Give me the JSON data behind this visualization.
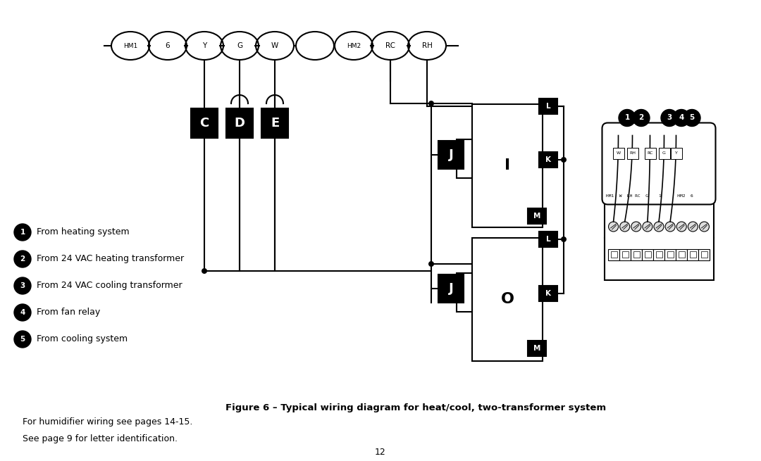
{
  "caption": "Figure 6 – Typical wiring diagram for heat/cool, two-transformer system",
  "footnote1": "For humidifier wiring see pages 14-15.",
  "footnote2": "See page 9 for letter identification.",
  "page_number": "12",
  "legend_items": [
    "From heating system",
    "From 24 VAC heating transformer",
    "From 24 VAC cooling transformer",
    "From fan relay",
    "From cooling system"
  ],
  "terminal_labels": [
    "HM1",
    "6",
    "Y",
    "G",
    "W",
    "",
    "HM2",
    "RC",
    "RH"
  ],
  "bg_color": "#ffffff",
  "line_color": "#000000"
}
